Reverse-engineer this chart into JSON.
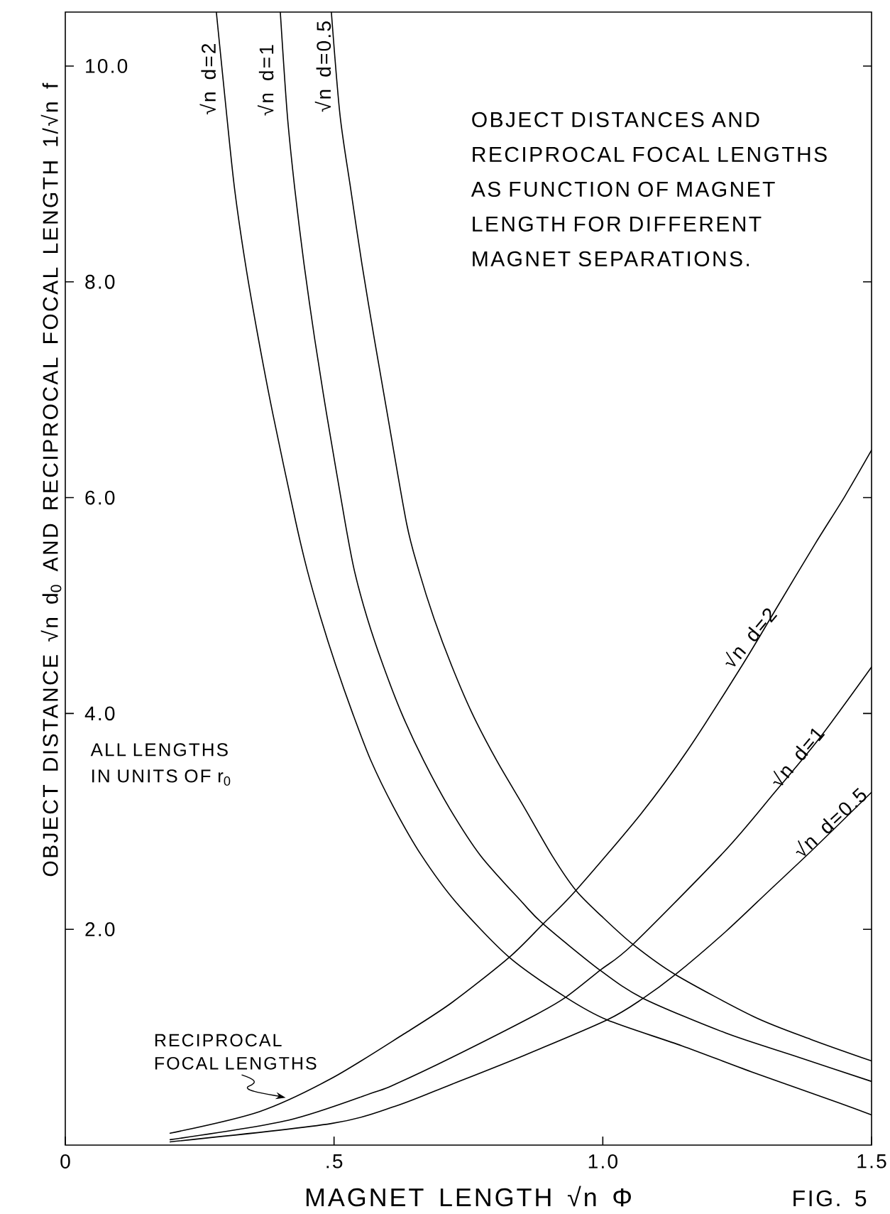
{
  "chart_data": {
    "type": "line",
    "title": "OBJECT DISTANCES AND RECIPROCAL FOCAL LENGTHS AS FUNCTION OF MAGNET LENGTH FOR DIFFERENT MAGNET SEPARATIONS.",
    "xlabel": "MAGNET LENGTH √n Φ",
    "ylabel": "OBJECT DISTANCE √n d$_{0}$ AND RECIPROCAL FOCAL LENGTH 1/√n f",
    "xlim": [
      0,
      1.5
    ],
    "ylim": [
      0,
      10.5
    ],
    "xticks": [
      0,
      {
        "value": 0.5,
        "label": ".5"
      },
      {
        "value": 1,
        "label": "1.0"
      },
      1.5
    ],
    "yticks": [
      {
        "value": 2,
        "label": "2.0"
      },
      {
        "value": 4,
        "label": "4.0"
      },
      {
        "value": 6,
        "label": "6.0"
      },
      {
        "value": 8,
        "label": "8.0"
      },
      {
        "value": 10,
        "label": "10.0"
      }
    ],
    "series": [
      {
        "name": "√n d=2",
        "color": "#000000",
        "x": [
          0.281,
          0.3,
          0.315,
          0.335,
          0.359,
          0.386,
          0.429,
          0.45,
          0.475,
          0.503,
          0.534,
          0.568,
          0.611,
          0.662,
          0.727,
          0.826,
          0.931,
          1.008,
          1.147,
          1.276,
          1.44,
          1.5
        ],
        "values": [
          10.5,
          9.56,
          8.86,
          8.17,
          7.48,
          6.78,
          5.77,
          5.33,
          4.89,
          4.45,
          4.01,
          3.57,
          3.13,
          2.69,
          2.25,
          1.74,
          1.37,
          1.16,
          0.92,
          0.68,
          0.39,
          0.28
        ]
      },
      {
        "name": "√n d=1",
        "color": "#000000",
        "x": [
          0.4,
          0.413,
          0.427,
          0.444,
          0.464,
          0.486,
          0.521,
          0.538,
          0.562,
          0.591,
          0.625,
          0.667,
          0.715,
          0.773,
          0.85,
          0.889,
          0.995,
          1.075,
          1.228,
          1.361,
          1.5
        ],
        "values": [
          10.5,
          9.55,
          8.86,
          8.17,
          7.47,
          6.78,
          5.76,
          5.32,
          4.88,
          4.45,
          4.01,
          3.56,
          3.12,
          2.68,
          2.25,
          2.05,
          1.62,
          1.36,
          1.04,
          0.82,
          0.59
        ]
      },
      {
        "name": "√n d=0.5",
        "color": "#000000",
        "x": [
          0.495,
          0.511,
          0.531,
          0.552,
          0.575,
          0.599,
          0.635,
          0.658,
          0.686,
          0.719,
          0.757,
          0.803,
          0.855,
          0.906,
          0.95,
          0.998,
          1.056,
          1.135,
          1.281,
          1.387,
          1.5
        ],
        "values": [
          10.5,
          9.55,
          8.86,
          8.16,
          7.47,
          6.78,
          5.76,
          5.32,
          4.88,
          4.44,
          4.0,
          3.56,
          3.12,
          2.68,
          2.36,
          2.12,
          1.86,
          1.58,
          1.19,
          0.98,
          0.78
        ]
      },
      {
        "name": "√n d=2",
        "color": "#000000",
        "x": [
          0.195,
          0.361,
          0.496,
          0.63,
          0.719,
          0.826,
          0.889,
          0.95,
          1.071,
          1.158,
          1.261,
          1.326,
          1.396,
          1.45,
          1.5
        ],
        "values": [
          0.11,
          0.31,
          0.62,
          1.03,
          1.32,
          1.74,
          2.05,
          2.36,
          3.07,
          3.66,
          4.46,
          5.0,
          5.58,
          6.01,
          6.44
        ]
      },
      {
        "name": "√n d=1",
        "color": "#000000",
        "x": [
          0.195,
          0.415,
          0.575,
          0.614,
          0.718,
          0.876,
          0.931,
          0.995,
          1.056,
          1.226,
          1.32,
          1.403,
          1.5
        ],
        "values": [
          0.05,
          0.23,
          0.49,
          0.565,
          0.81,
          1.21,
          1.37,
          1.62,
          1.86,
          2.72,
          3.27,
          3.77,
          4.43
        ]
      },
      {
        "name": "√n d=0.5",
        "color": "#000000",
        "x": [
          0.195,
          0.495,
          0.614,
          0.717,
          0.853,
          1.008,
          1.075,
          1.135,
          1.229,
          1.31,
          1.391,
          1.5
        ],
        "values": [
          0.03,
          0.2,
          0.36,
          0.56,
          0.83,
          1.16,
          1.36,
          1.58,
          1.98,
          2.36,
          2.74,
          3.27
        ]
      }
    ],
    "annotations": [
      "ALL LENGTHS IN UNITS OF r$_{0}$",
      {
        "text": "RECIPROCAL FOCAL LENGTHS",
        "x": 0.41,
        "y": 0.44
      },
      "FIG. 5"
    ]
  }
}
